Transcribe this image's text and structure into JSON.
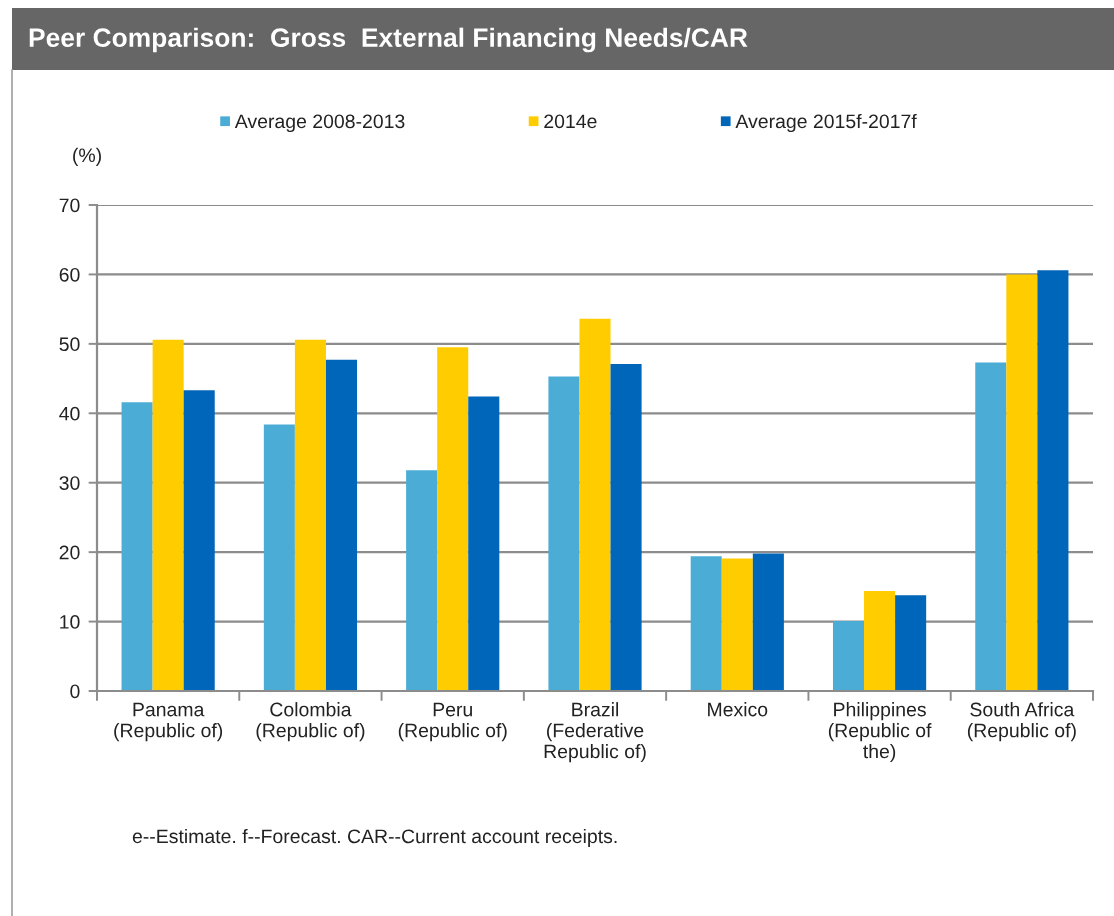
{
  "chart_data": {
    "type": "bar",
    "title": "Peer Comparison:  Gross  External Financing Needs/CAR",
    "ylabel": "(%)",
    "categories": [
      "Panama\n(Republic of)",
      "Colombia\n(Republic of)",
      "Peru\n(Republic of)",
      "Brazil\n(Federative\nRepublic of)",
      "Mexico",
      "Philippines\n(Republic of\nthe)",
      "South Africa\n(Republic of)"
    ],
    "series": [
      {
        "name": "Average 2008-2013",
        "color": "#4bacd6",
        "values": [
          41.6,
          38.4,
          31.8,
          45.3,
          19.4,
          10.1,
          47.3
        ]
      },
      {
        "name": "2014e",
        "color": "#ffcc00",
        "values": [
          50.6,
          50.6,
          49.5,
          53.6,
          19.1,
          14.4,
          60.0
        ]
      },
      {
        "name": "Average 2015f-2017f",
        "color": "#0066b9",
        "values": [
          43.3,
          47.7,
          42.4,
          47.1,
          19.8,
          13.8,
          60.6
        ]
      }
    ],
    "ylim": [
      0,
      70
    ],
    "yticks": [
      0,
      10,
      20,
      30,
      40,
      50,
      60,
      70
    ],
    "grid": "y",
    "legend": "top",
    "annotations": [
      "e--Estimate. f--Forecast. CAR--Current account receipts."
    ]
  }
}
